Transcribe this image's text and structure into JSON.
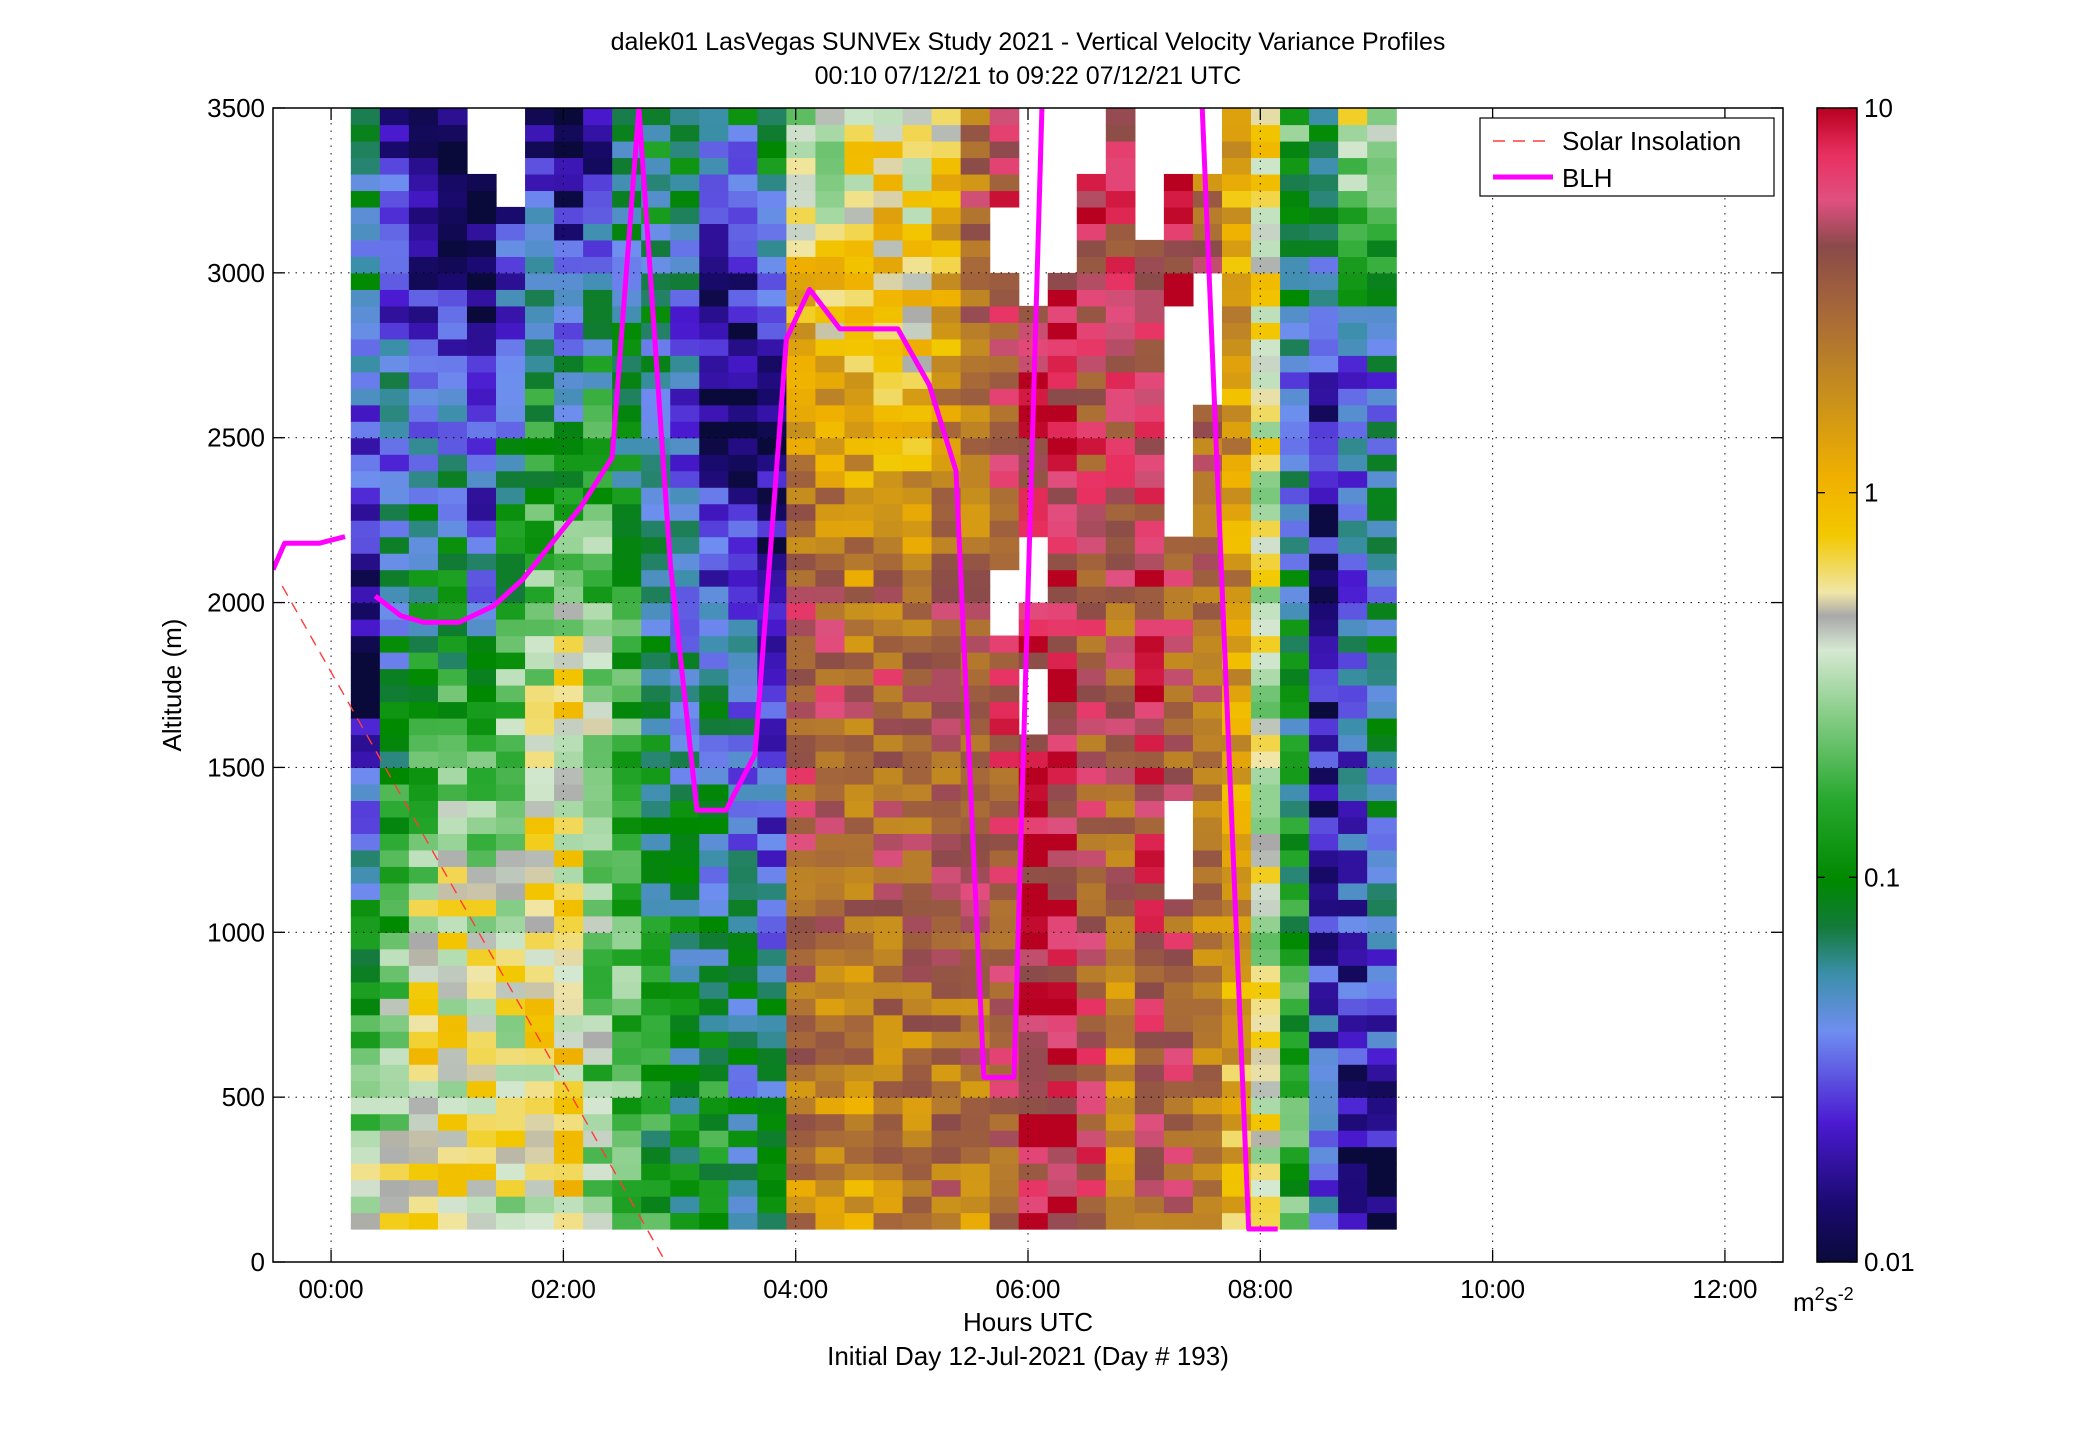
{
  "chart_data": {
    "type": "heatmap",
    "title": "dalek01 LasVegas SUNVEx Study 2021 - Vertical Velocity Variance Profiles",
    "subtitle": "00:10 07/12/21 to 09:22 07/12/21  UTC",
    "xlabel": "Hours UTC",
    "xlabel2": "Initial Day 12-Jul-2021 (Day # 193)",
    "ylabel": "Altitude (m)",
    "xlim": [
      -0.5,
      12.5
    ],
    "ylim": [
      0,
      3500
    ],
    "x_ticks": [
      0,
      2,
      4,
      6,
      8,
      10,
      12
    ],
    "x_tick_labels": [
      "00:00",
      "02:00",
      "04:00",
      "06:00",
      "08:00",
      "10:00",
      "12:00"
    ],
    "y_ticks": [
      0,
      500,
      1000,
      1500,
      2000,
      2500,
      3000,
      3500
    ],
    "y_tick_labels": [
      "0",
      "500",
      "1000",
      "1500",
      "2000",
      "2500",
      "3000",
      "3500"
    ],
    "grid": true,
    "legend": {
      "placement": "top-right",
      "entries": [
        "Solar Insolation",
        "BLH"
      ]
    },
    "colorbar": {
      "scale": "log",
      "range": [
        0.01,
        10
      ],
      "tick_values": [
        0.01,
        0.1,
        1,
        10
      ],
      "tick_labels": [
        "0.01",
        "0.1",
        "1",
        "10"
      ],
      "units_base": "m",
      "units_sup1": "2",
      "units_mid": "s",
      "units_sup2": "-2"
    },
    "heatmap": {
      "time_start": 0.17,
      "time_step": 0.25,
      "alt_start": 100,
      "alt_step": 50,
      "n_alt": 68,
      "column_log10_anchors": [
        [
          -0.4,
          -1.0,
          -2.0,
          -1.4,
          -1.0
        ],
        [
          -0.3,
          -0.7,
          -1.2,
          -1.4,
          -1.7
        ],
        [
          -0.2,
          -0.3,
          -1.0,
          -1.5,
          -1.9
        ],
        [
          -0.3,
          -0.3,
          -0.9,
          -1.5,
          -2.0
        ],
        [
          -0.2,
          -0.3,
          -1.1,
          -1.8,
          -2.1
        ],
        [
          -0.4,
          -0.3,
          -0.7,
          -1.3,
          -1.9
        ],
        [
          -0.3,
          -0.2,
          -0.5,
          -1.0,
          -1.8
        ],
        [
          -0.2,
          -0.2,
          -0.3,
          -1.2,
          -2.0
        ],
        [
          -0.6,
          -0.6,
          -0.5,
          -1.0,
          -1.9
        ],
        [
          -0.8,
          -0.7,
          -0.8,
          -1.2,
          -1.2
        ],
        [
          -0.9,
          -1.0,
          -1.1,
          -1.3,
          -1.0
        ],
        [
          -1.0,
          -1.1,
          -1.2,
          -1.5,
          -1.1
        ],
        [
          -0.8,
          -1.2,
          -1.3,
          -1.9,
          -1.3
        ],
        [
          -1.1,
          -1.3,
          -1.4,
          -2.0,
          -1.2
        ],
        [
          -1.0,
          -1.3,
          -1.7,
          -1.9,
          -0.9
        ],
        [
          0.3,
          0.5,
          0.7,
          0.2,
          -0.6
        ],
        [
          0.3,
          0.4,
          0.6,
          0.1,
          -0.5
        ],
        [
          0.2,
          0.4,
          0.5,
          0.0,
          -0.3
        ],
        [
          0.3,
          0.5,
          0.6,
          0.0,
          -0.2
        ],
        [
          0.3,
          0.4,
          0.6,
          -0.1,
          -0.3
        ],
        [
          0.4,
          0.5,
          0.6,
          0.2,
          -0.1
        ],
        [
          0.3,
          0.5,
          0.5,
          0.4,
          0.5
        ],
        [
          0.5,
          0.6,
          0.7,
          0.6,
          0.8
        ],
        [
          0.8,
          0.9,
          0.8,
          0.8,
          0.9
        ],
        [
          0.9,
          0.8,
          0.9,
          0.8,
          0.7
        ],
        [
          0.7,
          0.6,
          0.6,
          0.7,
          0.9
        ],
        [
          0.3,
          0.4,
          0.5,
          0.7,
          0.8
        ],
        [
          0.5,
          0.7,
          0.8,
          0.8,
          0.5
        ],
        [
          0.5,
          0.6,
          0.5,
          0.8,
          0.9
        ],
        [
          0.3,
          0.4,
          0.5,
          0.5,
          0.4
        ],
        [
          0.0,
          0.1,
          0.2,
          0.2,
          0.0
        ],
        [
          -0.3,
          -0.4,
          -0.4,
          -0.3,
          -0.2
        ],
        [
          -0.8,
          -0.9,
          -1.1,
          -1.5,
          -0.7
        ],
        [
          -1.4,
          -1.6,
          -1.8,
          -1.7,
          -1.0
        ],
        [
          -1.9,
          -1.6,
          -1.4,
          -1.5,
          -0.4
        ],
        [
          -2.0,
          -1.4,
          -1.2,
          -1.4,
          -0.6
        ]
      ],
      "blank_cells": [
        [
          22,
          36,
          40
        ],
        [
          22,
          58,
          62
        ],
        [
          23,
          30,
          34
        ],
        [
          23,
          38,
          42
        ],
        [
          23,
          56,
          68
        ],
        [
          24,
          58,
          68
        ],
        [
          25,
          64,
          68
        ],
        [
          27,
          60,
          68
        ],
        [
          28,
          20,
          26
        ],
        [
          28,
          42,
          56
        ],
        [
          28,
          64,
          68
        ],
        [
          29,
          50,
          58
        ],
        [
          29,
          64,
          68
        ],
        [
          4,
          64,
          68
        ],
        [
          5,
          62,
          68
        ]
      ]
    },
    "series": [
      {
        "name": "Solar Insolation",
        "color": "#ff3b3b",
        "style": "dashed",
        "x": [
          -0.42,
          2.88
        ],
        "y": [
          2050,
          0
        ]
      },
      {
        "name": "BLH",
        "color": "#ff00ff",
        "style": "solid",
        "segments": [
          {
            "x": [
              -0.5,
              -0.4,
              -0.33,
              -0.1,
              0.12
            ],
            "y": [
              2100,
              2180,
              2180,
              2180,
              2200
            ]
          },
          {
            "x": [
              0.38,
              0.6,
              0.8,
              1.1,
              1.4,
              1.65,
              1.9,
              2.15,
              2.42,
              2.65,
              2.92,
              3.15,
              3.4,
              3.65,
              3.92,
              4.12,
              4.38,
              4.62,
              4.88,
              5.15,
              5.38,
              5.62,
              5.88,
              6.12,
              6.35,
              6.5,
              7.5,
              7.9,
              8.15
            ],
            "y": [
              2020,
              1960,
              1940,
              1940,
              1990,
              2070,
              2180,
              2290,
              2440,
              3500,
              2120,
              1370,
              1370,
              1540,
              2800,
              2950,
              2830,
              2830,
              2830,
              2660,
              2400,
              560,
              560,
              3500,
              null,
              null,
              3500,
              100,
              100
            ]
          }
        ]
      }
    ]
  }
}
